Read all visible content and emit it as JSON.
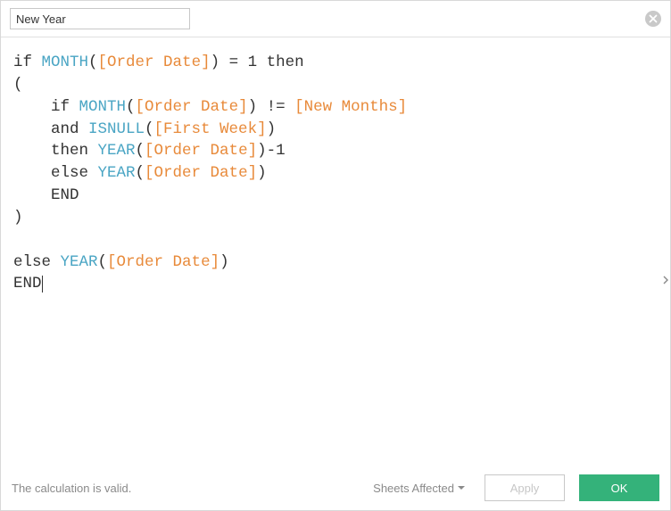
{
  "calc_name": "New Year",
  "status_text": "The calculation is valid.",
  "sheets_affected_label": "Sheets Affected",
  "apply_label": "Apply",
  "ok_label": "OK",
  "colors": {
    "function": "#4aa5c4",
    "field": "#e88a3a",
    "keyword": "#333333",
    "text": "#333333",
    "status": "#8a8a8a",
    "border": "#d8d8d8",
    "close_bg": "#c9c9c9",
    "primary_btn": "#34b27a"
  },
  "code": {
    "lines": [
      [
        {
          "t": "if ",
          "c": "kw"
        },
        {
          "t": "MONTH",
          "c": "fn"
        },
        {
          "t": "(",
          "c": "op"
        },
        {
          "t": "[Order Date]",
          "c": "fld"
        },
        {
          "t": ")",
          "c": "op"
        },
        {
          "t": " = ",
          "c": "op"
        },
        {
          "t": "1",
          "c": "num"
        },
        {
          "t": " then",
          "c": "kw"
        }
      ],
      [
        {
          "t": "(",
          "c": "op"
        }
      ],
      [
        {
          "t": "    if ",
          "c": "kw"
        },
        {
          "t": "MONTH",
          "c": "fn"
        },
        {
          "t": "(",
          "c": "op"
        },
        {
          "t": "[Order Date]",
          "c": "fld"
        },
        {
          "t": ")",
          "c": "op"
        },
        {
          "t": " != ",
          "c": "op"
        },
        {
          "t": "[New Months]",
          "c": "fld"
        }
      ],
      [
        {
          "t": "    and ",
          "c": "kw"
        },
        {
          "t": "ISNULL",
          "c": "fn"
        },
        {
          "t": "(",
          "c": "op"
        },
        {
          "t": "[First Week]",
          "c": "fld"
        },
        {
          "t": ")",
          "c": "op"
        }
      ],
      [
        {
          "t": "    then ",
          "c": "kw"
        },
        {
          "t": "YEAR",
          "c": "fn"
        },
        {
          "t": "(",
          "c": "op"
        },
        {
          "t": "[Order Date]",
          "c": "fld"
        },
        {
          "t": ")",
          "c": "op"
        },
        {
          "t": "-1",
          "c": "op"
        }
      ],
      [
        {
          "t": "    else ",
          "c": "kw"
        },
        {
          "t": "YEAR",
          "c": "fn"
        },
        {
          "t": "(",
          "c": "op"
        },
        {
          "t": "[Order Date]",
          "c": "fld"
        },
        {
          "t": ")",
          "c": "op"
        }
      ],
      [
        {
          "t": "    END",
          "c": "kw"
        }
      ],
      [
        {
          "t": ")",
          "c": "op"
        }
      ],
      [],
      [
        {
          "t": "else ",
          "c": "kw"
        },
        {
          "t": "YEAR",
          "c": "fn"
        },
        {
          "t": "(",
          "c": "op"
        },
        {
          "t": "[Order Date]",
          "c": "fld"
        },
        {
          "t": ")",
          "c": "op"
        }
      ],
      [
        {
          "t": "END",
          "c": "kw",
          "cursor_after": true
        }
      ]
    ]
  }
}
